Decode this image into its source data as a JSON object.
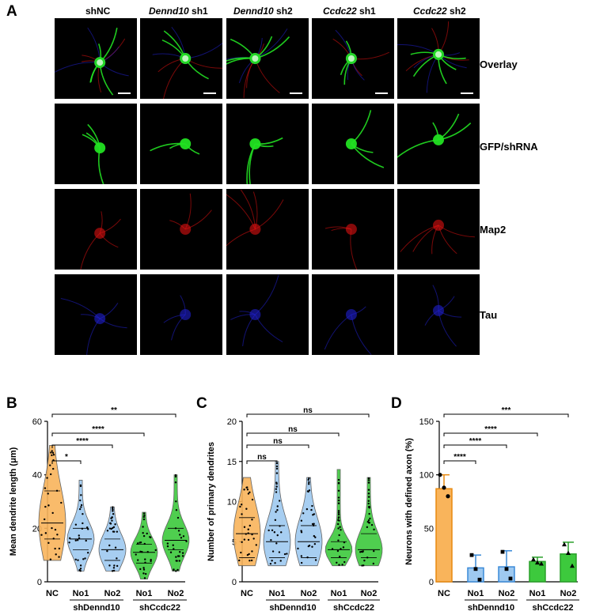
{
  "figure": {
    "panel_letters": [
      "A",
      "B",
      "C",
      "D"
    ],
    "columns": [
      {
        "italic": "",
        "plain": "shNC"
      },
      {
        "italic": "Dennd10",
        "plain": " sh1"
      },
      {
        "italic": "Dennd10",
        "plain": " sh2"
      },
      {
        "italic": "Ccdc22",
        "plain": " sh1"
      },
      {
        "italic": "Ccdc22",
        "plain": " sh2"
      }
    ],
    "rows": [
      "Overlay",
      "GFP/shRNA",
      "Map2",
      "Tau"
    ],
    "colors": {
      "nc_orange": "#f9b45b",
      "dennd_blue": "#9ec9f0",
      "ccdc_green": "#3dc93d",
      "gfp": "#22e022",
      "map2": "#e01010",
      "tau": "#2020d0"
    }
  },
  "chart_data": [
    {
      "type": "violin",
      "ylabel": "Mean dendrite length (μm)",
      "ylim": [
        0,
        60
      ],
      "yticks": [
        "0",
        "20",
        "40",
        "60"
      ],
      "categories": [
        "NC",
        "No1",
        "No2",
        "No1",
        "No2"
      ],
      "groups": [
        {
          "name": "shDennd10",
          "span": [
            1,
            2
          ]
        },
        {
          "name": "shCcdc22",
          "span": [
            3,
            4
          ]
        }
      ],
      "medians": [
        22,
        16,
        12,
        11,
        15.5
      ],
      "quartiles": [
        [
          16,
          34
        ],
        [
          12,
          20
        ],
        [
          8,
          16
        ],
        [
          7,
          14
        ],
        [
          12,
          20
        ]
      ],
      "ranges": [
        [
          8,
          51
        ],
        [
          4,
          38
        ],
        [
          4,
          28
        ],
        [
          1,
          26
        ],
        [
          4,
          40
        ]
      ],
      "significance": [
        {
          "pair": [
            0,
            1
          ],
          "label": "*"
        },
        {
          "pair": [
            0,
            2
          ],
          "label": "****"
        },
        {
          "pair": [
            0,
            3
          ],
          "label": "****"
        },
        {
          "pair": [
            0,
            4
          ],
          "label": "**"
        }
      ]
    },
    {
      "type": "violin",
      "ylabel": "Number of primary dendrites",
      "ylim": [
        0,
        20
      ],
      "yticks": [
        "0",
        "5",
        "10",
        "15",
        "20"
      ],
      "categories": [
        "NC",
        "No1",
        "No2",
        "No1",
        "No2"
      ],
      "groups": [
        {
          "name": "shDennd10",
          "span": [
            1,
            2
          ]
        },
        {
          "name": "shCcdc22",
          "span": [
            3,
            4
          ]
        }
      ],
      "medians": [
        6,
        5,
        5,
        4,
        4
      ],
      "quartiles": [
        [
          3,
          8
        ],
        [
          3,
          7
        ],
        [
          3,
          7
        ],
        [
          3,
          5
        ],
        [
          3,
          6
        ]
      ],
      "ranges": [
        [
          2,
          13
        ],
        [
          2,
          15
        ],
        [
          2,
          13
        ],
        [
          2,
          14
        ],
        [
          2,
          13
        ]
      ],
      "significance": [
        {
          "pair": [
            0,
            1
          ],
          "label": "ns"
        },
        {
          "pair": [
            0,
            2
          ],
          "label": "ns"
        },
        {
          "pair": [
            0,
            3
          ],
          "label": "ns"
        },
        {
          "pair": [
            0,
            4
          ],
          "label": "ns"
        }
      ]
    },
    {
      "type": "bar",
      "ylabel": "Neurons with defined axon (%)",
      "ylim": [
        0,
        150
      ],
      "yticks": [
        "0",
        "50",
        "100",
        "150"
      ],
      "categories": [
        "NC",
        "No1",
        "No2",
        "No1",
        "No2"
      ],
      "groups": [
        {
          "name": "shDennd10",
          "span": [
            1,
            2
          ]
        },
        {
          "name": "shCcdc22",
          "span": [
            3,
            4
          ]
        }
      ],
      "values": [
        87,
        13,
        14,
        19,
        26
      ],
      "errors": [
        13,
        12,
        15,
        4,
        11
      ],
      "points": [
        [
          100,
          88,
          80
        ],
        [
          25,
          12,
          2
        ],
        [
          28,
          12,
          3
        ],
        [
          21,
          18,
          17
        ],
        [
          35,
          27,
          15
        ]
      ],
      "significance": [
        {
          "pair": [
            0,
            1
          ],
          "label": "****"
        },
        {
          "pair": [
            0,
            2
          ],
          "label": "****"
        },
        {
          "pair": [
            0,
            3
          ],
          "label": "****"
        },
        {
          "pair": [
            0,
            4
          ],
          "label": "***"
        }
      ]
    }
  ]
}
